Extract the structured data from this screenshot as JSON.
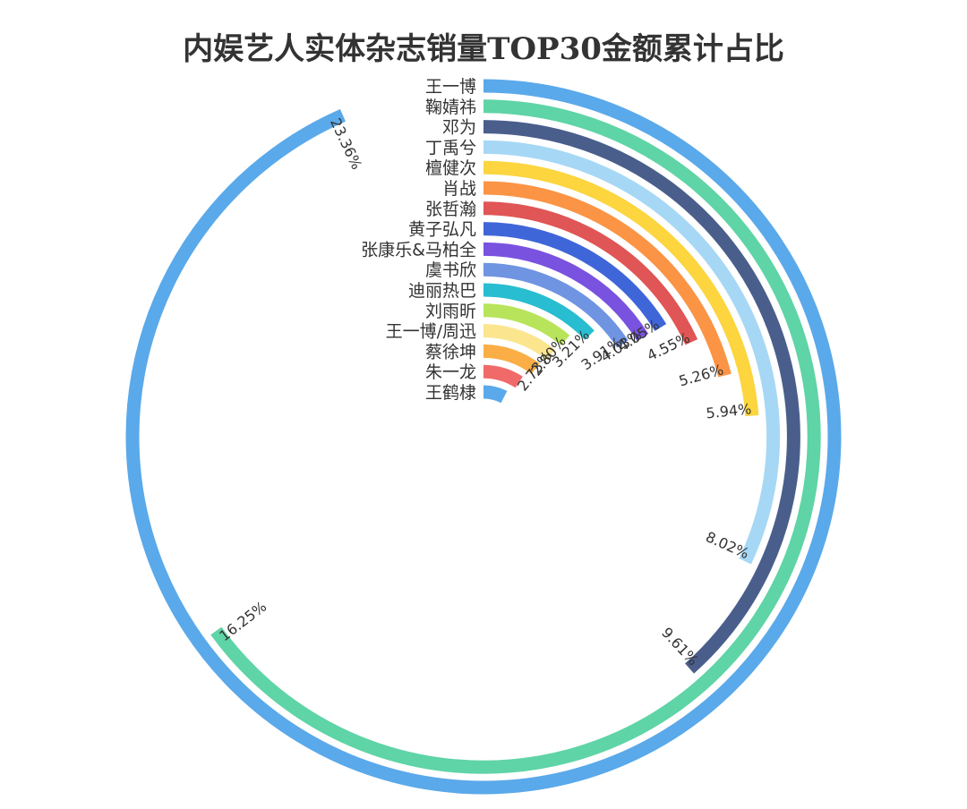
{
  "chart_data": {
    "type": "radial-bar",
    "title": "内娱艺人实体杂志销量TOP30金额累计占比",
    "unit": "%",
    "categories": [
      "王一博",
      "鞠婧祎",
      "邓为",
      "丁禹兮",
      "檀健次",
      "肖战",
      "张哲瀚",
      "黄子弘凡",
      "张康乐&马柏全",
      "虞书欣",
      "迪丽热巴",
      "刘雨昕",
      "王一博/周迅",
      "蔡徐坤",
      "朱一龙",
      "王鹤棣"
    ],
    "values": [
      23.36,
      16.25,
      9.61,
      8.02,
      5.94,
      5.26,
      4.55,
      4.05,
      4.03,
      3.91,
      3.21,
      2.8,
      2.73,
      2.6,
      2.3,
      1.9
    ],
    "value_labels": [
      "23.36%",
      "16.25%",
      "9.61%",
      "8.02%",
      "5.94%",
      "5.26%",
      "4.55%",
      "4.05%",
      "4.03%",
      "3.91%",
      "3.21%",
      "2.80%",
      "2.73%",
      "",
      "",
      ""
    ],
    "colors": [
      "#5aa9ea",
      "#5fd4a6",
      "#4a5e8c",
      "#a6d8f5",
      "#fcd53f",
      "#fb9445",
      "#e05555",
      "#3f66d9",
      "#7a52e0",
      "#6f94e2",
      "#28bdd0",
      "#b7e45a",
      "#fbe58f",
      "#fbae45",
      "#f06a6a",
      "#5aa9ea"
    ],
    "max_value": 25,
    "legend": "none",
    "grid": false
  }
}
